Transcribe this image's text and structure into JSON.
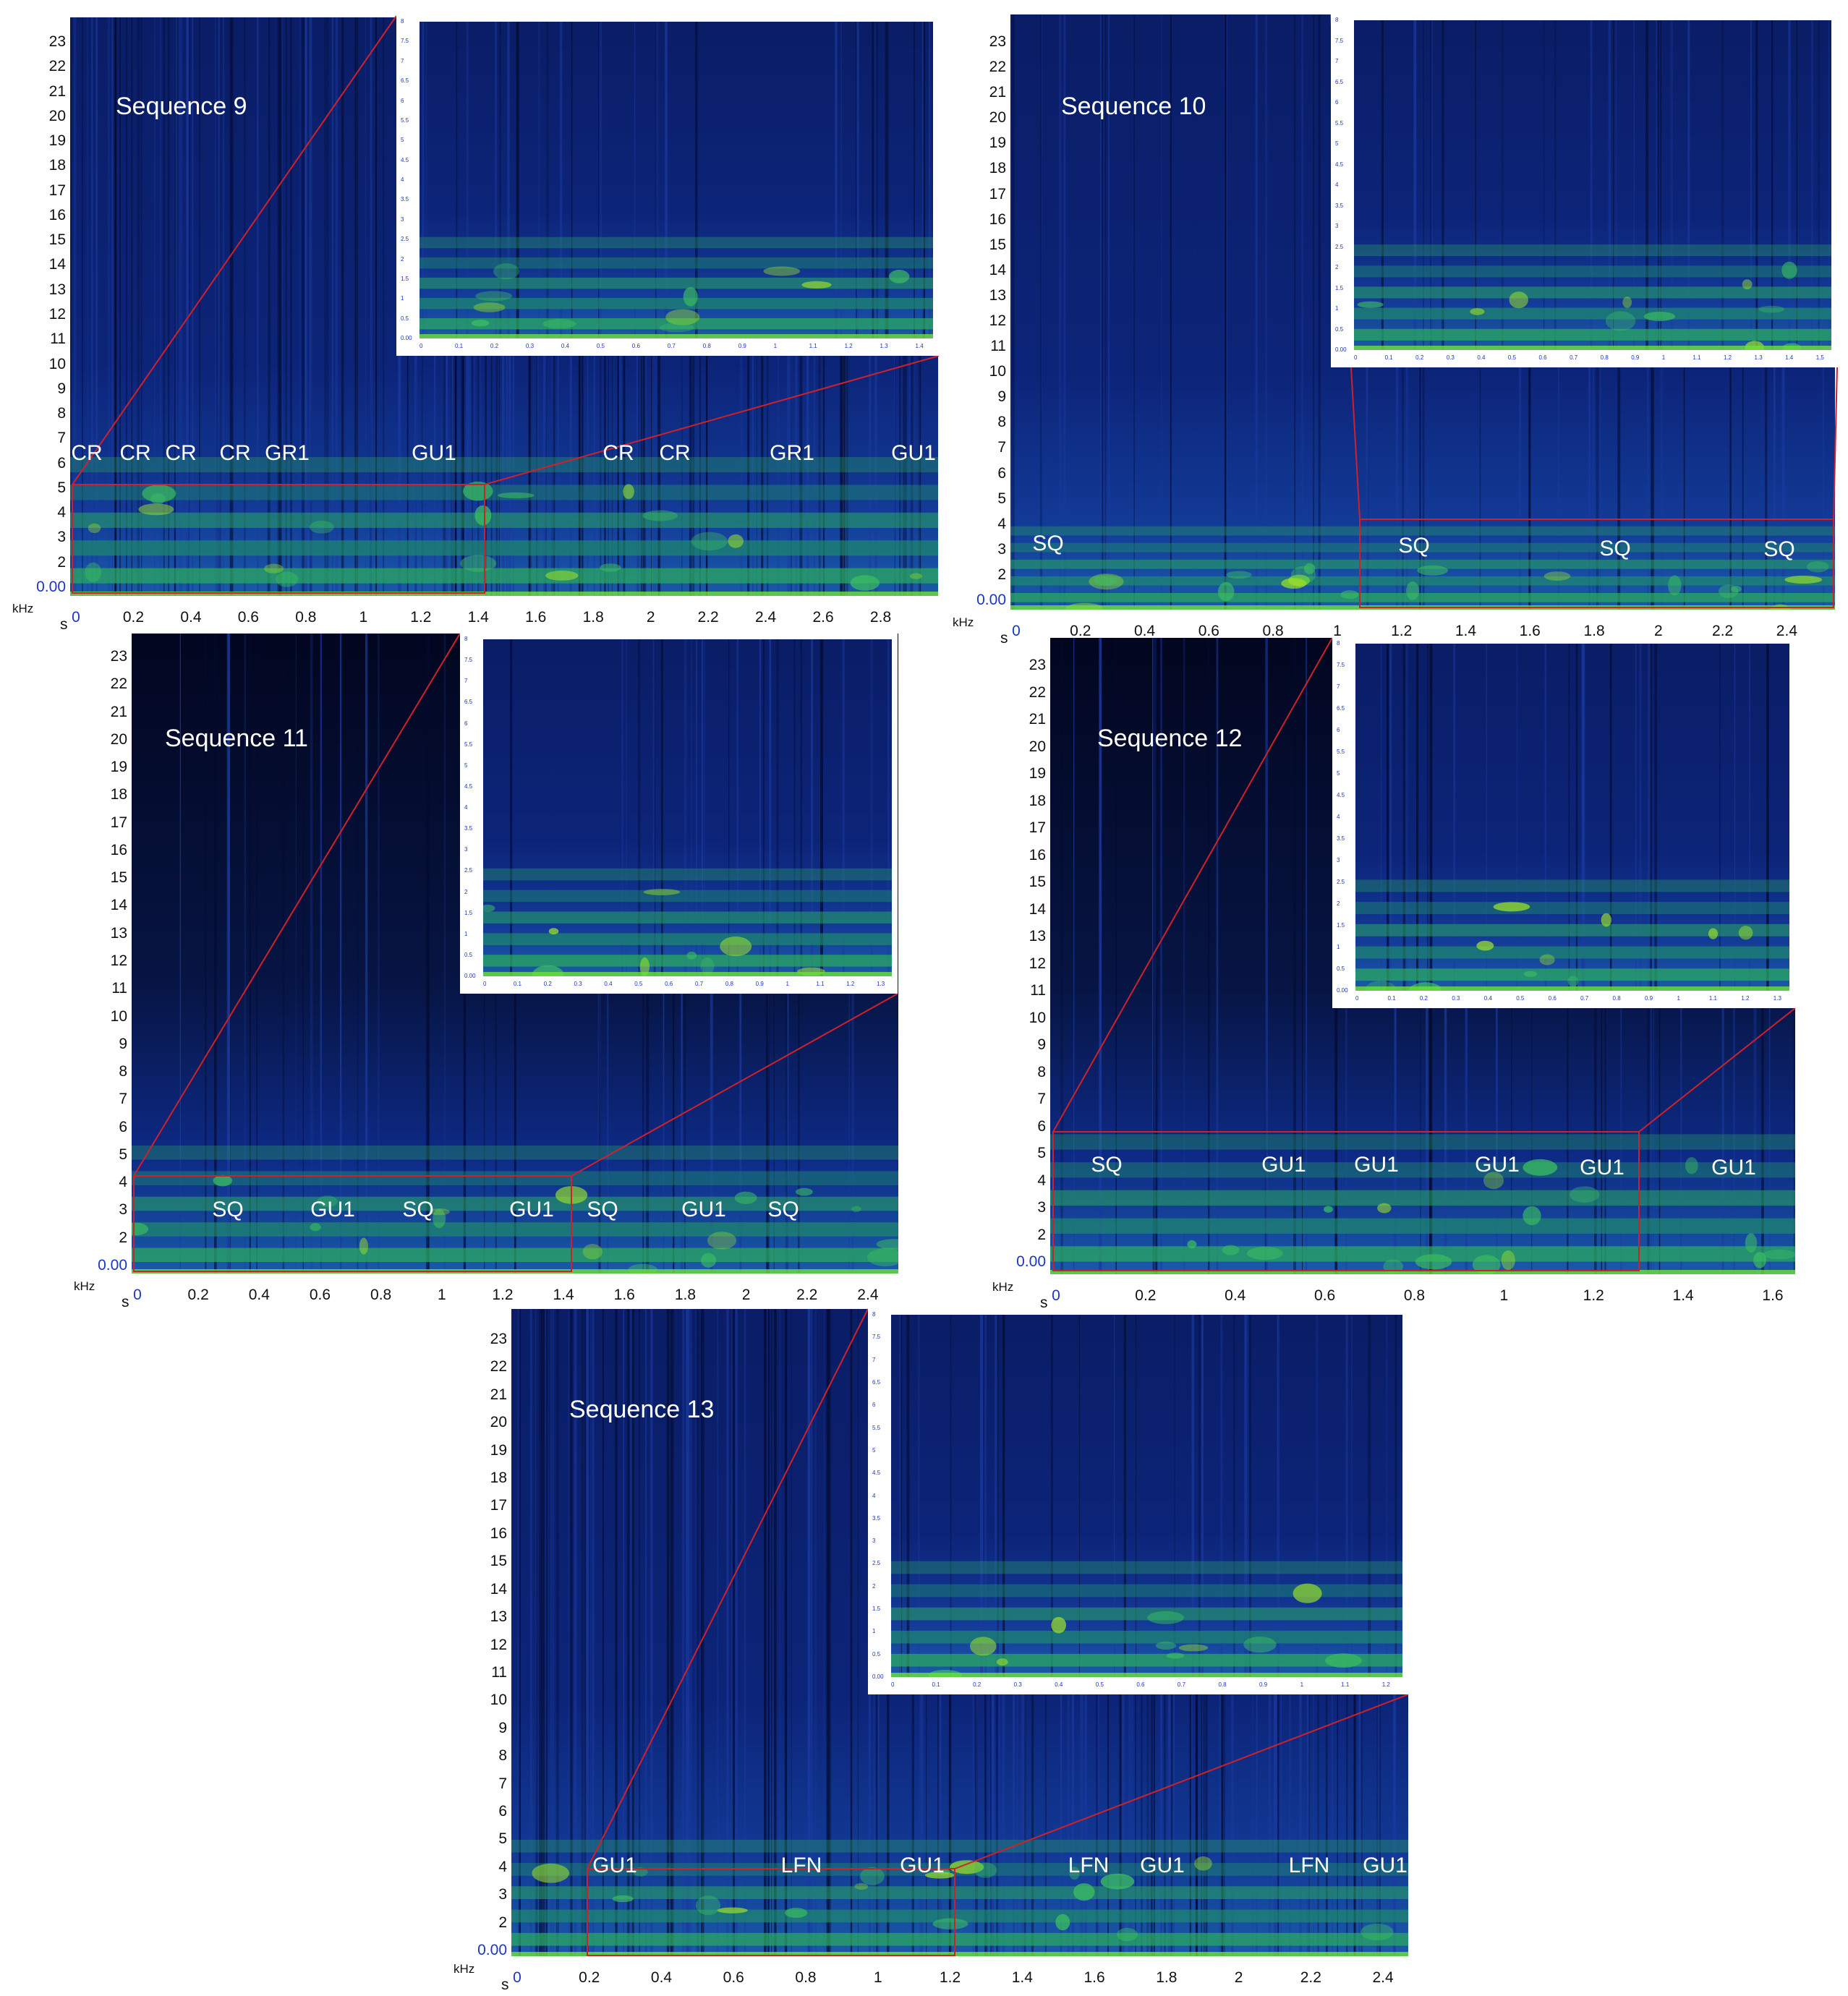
{
  "units": {
    "y": "kHz",
    "x": "s"
  },
  "y_ticks": [
    "23",
    "22",
    "21",
    "20",
    "19",
    "18",
    "17",
    "16",
    "15",
    "14",
    "13",
    "12",
    "11",
    "10",
    "9",
    "8",
    "7",
    "6",
    "5",
    "4",
    "3",
    "2",
    "0.00"
  ],
  "panels": [
    {
      "title": "Sequence 9",
      "x_ticks": [
        "0",
        "0.2",
        "0.4",
        "0.6",
        "0.8",
        "1",
        "1.2",
        "1.4",
        "1.6",
        "1.8",
        "2",
        "2.2",
        "2.4",
        "2.6",
        "2.8"
      ],
      "labels": [
        "CR",
        "CR",
        "CR",
        "CR",
        "GR1",
        "GU1",
        "CR",
        "CR",
        "GR1",
        "GU1"
      ],
      "inset_y_ticks": [
        "8",
        "7.5",
        "7",
        "6.5",
        "6",
        "5.5",
        "5",
        "4.5",
        "4",
        "3.5",
        "3",
        "2.5",
        "2",
        "1.5",
        "1",
        "0.5",
        "0.00"
      ],
      "inset_x_ticks": [
        "0",
        "0.1",
        "0.2",
        "0.3",
        "0.4",
        "0.5",
        "0.6",
        "0.7",
        "0.8",
        "0.9",
        "1",
        "1.1",
        "1.2",
        "1.3",
        "1.4"
      ]
    },
    {
      "title": "Sequence 10",
      "x_ticks": [
        "0",
        "0.2",
        "0.4",
        "0.6",
        "0.8",
        "1",
        "1.2",
        "1.4",
        "1.6",
        "1.8",
        "2",
        "2.2",
        "2.4"
      ],
      "labels": [
        "SQ",
        "SQ",
        "SQ",
        "SQ"
      ],
      "inset_y_ticks": [
        "8",
        "7.5",
        "7",
        "6.5",
        "6",
        "5.5",
        "5",
        "4.5",
        "4",
        "3.5",
        "3",
        "2.5",
        "2",
        "1.5",
        "1",
        "0.5",
        "0.00"
      ],
      "inset_x_ticks": [
        "0",
        "0.1",
        "0.2",
        "0.3",
        "0.4",
        "0.5",
        "0.6",
        "0.7",
        "0.8",
        "0.9",
        "1",
        "1.1",
        "1.2",
        "1.3",
        "1.4",
        "1.5"
      ]
    },
    {
      "title": "Sequence 11",
      "x_ticks": [
        "0",
        "0.2",
        "0.4",
        "0.6",
        "0.8",
        "1",
        "1.2",
        "1.4",
        "1.6",
        "1.8",
        "2",
        "2.2",
        "2.4"
      ],
      "labels": [
        "SQ",
        "GU1",
        "SQ",
        "GU1",
        "SQ",
        "GU1",
        "SQ"
      ],
      "inset_y_ticks": [
        "8",
        "7.5",
        "7",
        "6.5",
        "6",
        "5.5",
        "5",
        "4.5",
        "4",
        "3.5",
        "3",
        "2.5",
        "2",
        "1.5",
        "1",
        "0.5",
        "0.00"
      ],
      "inset_x_ticks": [
        "0",
        "0.1",
        "0.2",
        "0.3",
        "0.4",
        "0.5",
        "0.6",
        "0.7",
        "0.8",
        "0.9",
        "1",
        "1.1",
        "1.2",
        "1.3"
      ]
    },
    {
      "title": "Sequence 12",
      "x_ticks": [
        "0",
        "0.2",
        "0.4",
        "0.6",
        "0.8",
        "1",
        "1.2",
        "1.4",
        "1.6"
      ],
      "labels": [
        "SQ",
        "GU1",
        "GU1",
        "GU1",
        "GU1",
        "GU1"
      ],
      "inset_y_ticks": [
        "8",
        "7.5",
        "7",
        "6.5",
        "6",
        "5.5",
        "5",
        "4.5",
        "4",
        "3.5",
        "3",
        "2.5",
        "2",
        "1.5",
        "1",
        "0.5",
        "0.00"
      ],
      "inset_x_ticks": [
        "0",
        "0.1",
        "0.2",
        "0.3",
        "0.4",
        "0.5",
        "0.6",
        "0.7",
        "0.8",
        "0.9",
        "1",
        "1.1",
        "1.2",
        "1.3"
      ]
    },
    {
      "title": "Sequence 13",
      "x_ticks": [
        "0",
        "0.2",
        "0.4",
        "0.6",
        "0.8",
        "1",
        "1.2",
        "1.4",
        "1.6",
        "1.8",
        "2",
        "2.2",
        "2.4"
      ],
      "labels": [
        "GU1",
        "LFN",
        "GU1",
        "LFN",
        "GU1",
        "LFN",
        "GU1"
      ],
      "inset_y_ticks": [
        "8",
        "7.5",
        "7",
        "6.5",
        "6",
        "5.5",
        "5",
        "4.5",
        "4",
        "3.5",
        "3",
        "2.5",
        "2",
        "1.5",
        "1",
        "0.5",
        "0.00"
      ],
      "inset_x_ticks": [
        "0",
        "0.1",
        "0.2",
        "0.3",
        "0.4",
        "0.5",
        "0.6",
        "0.7",
        "0.8",
        "0.9",
        "1",
        "1.1",
        "1.2"
      ]
    }
  ]
}
